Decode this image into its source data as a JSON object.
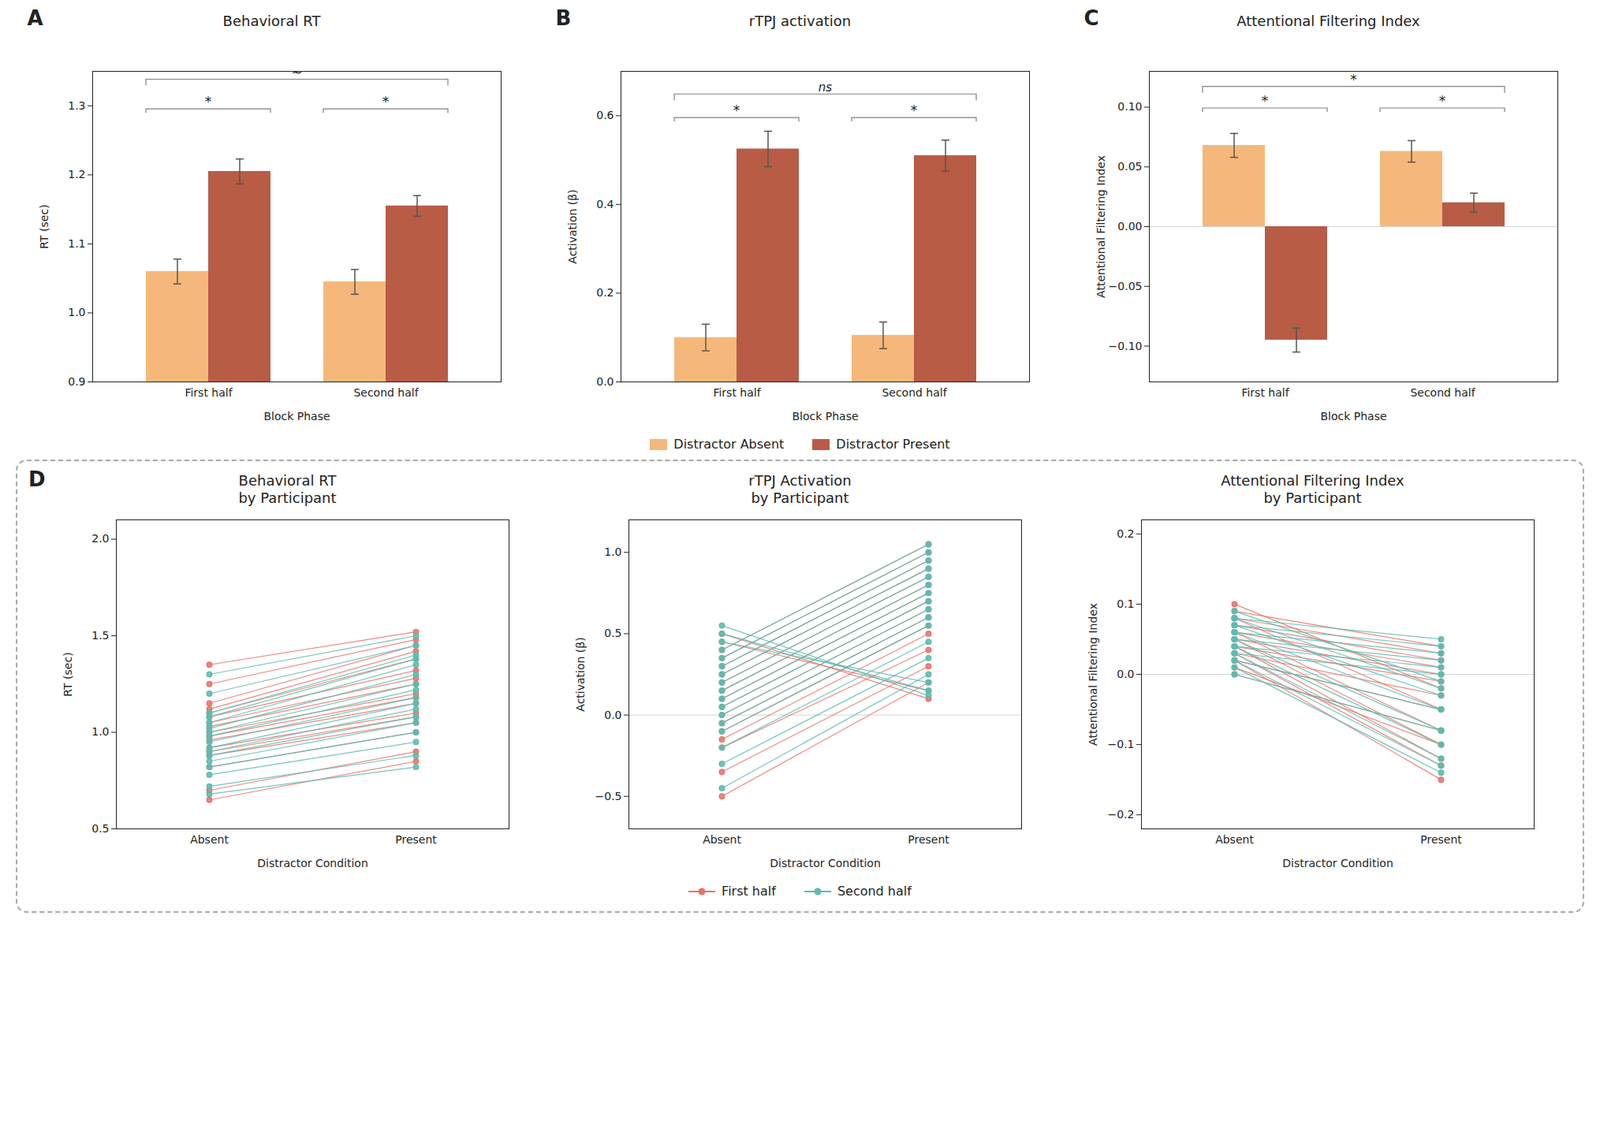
{
  "chart_data": [
    {
      "type": "bar",
      "panel_label": "A",
      "title": "Behavioral RT",
      "xlabel": "Block Phase",
      "ylabel": "RT (sec)",
      "categories": [
        "First half",
        "Second half"
      ],
      "series": [
        {
          "name": "Distractor Absent",
          "color": "#F5B87A",
          "values": [
            1.06,
            1.045
          ],
          "errors": [
            0.018,
            0.018
          ]
        },
        {
          "name": "Distractor Present",
          "color": "#B85C45",
          "values": [
            1.205,
            1.155
          ],
          "errors": [
            0.018,
            0.015
          ]
        }
      ],
      "ylim": [
        0.9,
        1.35
      ],
      "yticks": [
        0.9,
        {
          "value": 1,
          "label": "1.0"
        },
        1.1,
        1.2,
        1.3
      ],
      "annotations": [
        {
          "text": "*",
          "categories": [
            "First half"
          ],
          "y": 1.295
        },
        {
          "text": "*",
          "categories": [
            "Second half"
          ],
          "y": 1.295
        },
        {
          "text": "~",
          "categories": [
            "First half",
            "Second half"
          ],
          "y": 1.338
        }
      ]
    },
    {
      "type": "bar",
      "panel_label": "B",
      "title": "rTPJ activation",
      "xlabel": "Block Phase",
      "ylabel": "Activation (β)",
      "categories": [
        "First half",
        "Second half"
      ],
      "series": [
        {
          "name": "Distractor Absent",
          "color": "#F5B87A",
          "values": [
            0.1,
            0.105
          ],
          "errors": [
            0.03,
            0.03
          ]
        },
        {
          "name": "Distractor Present",
          "color": "#B85C45",
          "values": [
            0.525,
            0.51
          ],
          "errors": [
            0.04,
            0.035
          ]
        }
      ],
      "ylim": [
        0.0,
        0.7
      ],
      "yticks": [
        {
          "value": 0,
          "label": "0.0"
        },
        0.2,
        0.4,
        0.6
      ],
      "legend": "bottom",
      "annotations": [
        {
          "text": "*",
          "categories": [
            "First half"
          ],
          "y": 0.595
        },
        {
          "text": "*",
          "categories": [
            "Second half"
          ],
          "y": 0.595
        },
        {
          "text": "ns",
          "categories": [
            "First half",
            "Second half"
          ],
          "y": 0.648
        }
      ]
    },
    {
      "type": "bar",
      "panel_label": "C",
      "title": "Attentional Filtering Index",
      "xlabel": "Block Phase",
      "ylabel": "Attentional Filtering Index",
      "categories": [
        "First half",
        "Second half"
      ],
      "series": [
        {
          "name": "Distractor Absent",
          "color": "#F5B87A",
          "values": [
            0.068,
            0.063
          ],
          "errors": [
            0.01,
            0.009
          ]
        },
        {
          "name": "Distractor Present",
          "color": "#B85C45",
          "values": [
            -0.095,
            0.02
          ],
          "errors": [
            0.01,
            0.008
          ]
        }
      ],
      "ylim": [
        -0.13,
        0.13
      ],
      "yticks": [
        {
          "value": -0.1,
          "label": "−0.10"
        },
        -0.05,
        {
          "value": 0,
          "label": "0.00"
        },
        0.05,
        {
          "value": 0.1,
          "label": "0.10"
        }
      ],
      "annotations": [
        {
          "text": "*",
          "categories": [
            "First half"
          ],
          "y": 0.099
        },
        {
          "text": "*",
          "categories": [
            "Second half"
          ],
          "y": 0.099
        },
        {
          "text": "*",
          "categories": [
            "First half",
            "Second half"
          ],
          "y": 0.117
        }
      ]
    },
    {
      "type": "line",
      "panel_label": "D",
      "title": "Behavioral RT\nby Participant",
      "xlabel": "Distractor Condition",
      "ylabel": "RT (sec)",
      "categories": [
        "Absent",
        "Present"
      ],
      "series": [
        {
          "name": "First half",
          "color": "#E8746A",
          "marker": "circle",
          "values": [
            [
              1.35,
              1.25,
              1.15,
              1.12,
              1.1,
              1.08,
              1.05,
              1.03,
              1.0,
              0.98,
              0.96,
              0.92,
              0.9,
              0.88,
              0.82,
              0.7,
              0.65
            ],
            [
              1.52,
              1.48,
              1.45,
              1.42,
              1.38,
              1.32,
              1.28,
              1.25,
              1.2,
              1.18,
              1.15,
              1.1,
              1.08,
              1.05,
              1.0,
              0.9,
              0.85
            ]
          ]
        },
        {
          "name": "Second half",
          "color": "#5BBCB0",
          "marker": "circle",
          "values": [
            [
              1.3,
              1.2,
              1.1,
              1.08,
              1.05,
              1.02,
              1.0,
              0.98,
              0.95,
              0.92,
              0.9,
              0.88,
              0.85,
              0.82,
              0.78,
              0.72,
              0.68
            ],
            [
              1.5,
              1.45,
              1.4,
              1.38,
              1.35,
              1.3,
              1.25,
              1.22,
              1.18,
              1.15,
              1.12,
              1.08,
              1.05,
              1.0,
              0.95,
              0.88,
              0.82
            ]
          ]
        }
      ],
      "ylim": [
        0.5,
        2.1
      ],
      "yticks": [
        0.5,
        {
          "value": 1,
          "label": "1.0"
        },
        1.5,
        {
          "value": 2,
          "label": "2.0"
        }
      ]
    },
    {
      "type": "line",
      "title": "rTPJ Activation\nby Participant",
      "xlabel": "Distractor Condition",
      "ylabel": "Activation (β)",
      "categories": [
        "Absent",
        "Present"
      ],
      "series": [
        {
          "name": "First half",
          "color": "#E8746A",
          "marker": "circle",
          "values": [
            [
              -0.5,
              -0.35,
              -0.2,
              -0.15,
              -0.1,
              -0.05,
              0.0,
              0.05,
              0.1,
              0.15,
              0.2,
              0.25,
              0.3,
              0.35,
              0.4,
              0.45,
              0.5
            ],
            [
              0.2,
              0.3,
              0.4,
              0.5,
              0.55,
              0.6,
              0.65,
              0.7,
              0.75,
              0.8,
              0.85,
              0.9,
              0.95,
              1.0,
              1.05,
              0.15,
              0.1
            ]
          ]
        },
        {
          "name": "Second half",
          "color": "#5BBCB0",
          "marker": "circle",
          "values": [
            [
              -0.45,
              -0.3,
              -0.2,
              -0.1,
              -0.05,
              0.0,
              0.05,
              0.1,
              0.15,
              0.2,
              0.25,
              0.3,
              0.35,
              0.4,
              0.45,
              0.5,
              0.55
            ],
            [
              0.25,
              0.35,
              0.45,
              0.55,
              0.6,
              0.65,
              0.7,
              0.75,
              0.8,
              0.85,
              0.9,
              0.95,
              1.0,
              1.05,
              0.2,
              0.15,
              0.12
            ]
          ]
        }
      ],
      "legend": "bottom",
      "ylim": [
        -0.7,
        1.2
      ],
      "yticks": [
        -0.5,
        {
          "value": 0,
          "label": "0.0"
        },
        0.5,
        {
          "value": 1,
          "label": "1.0"
        }
      ]
    },
    {
      "type": "line",
      "title": "Attentional Filtering Index\nby Participant",
      "xlabel": "Distractor Condition",
      "ylabel": "Attentional Filtering Index",
      "categories": [
        "Absent",
        "Present"
      ],
      "series": [
        {
          "name": "First half",
          "color": "#E8746A",
          "marker": "circle",
          "values": [
            [
              0.1,
              0.08,
              0.06,
              0.05,
              0.04,
              0.03,
              0.02,
              0.01,
              0.0,
              0.02,
              0.03,
              0.04,
              0.05,
              0.06,
              0.07,
              0.08,
              0.09
            ],
            [
              -0.02,
              -0.05,
              -0.08,
              -0.1,
              -0.12,
              -0.13,
              -0.15,
              -0.1,
              -0.08,
              -0.05,
              -0.03,
              -0.01,
              0.0,
              0.01,
              0.02,
              0.03,
              0.04
            ]
          ]
        },
        {
          "name": "Second half",
          "color": "#5BBCB0",
          "marker": "circle",
          "values": [
            [
              0.09,
              0.08,
              0.07,
              0.06,
              0.05,
              0.04,
              0.03,
              0.02,
              0.01,
              0.0,
              0.02,
              0.03,
              0.04,
              0.05,
              0.06,
              0.07,
              0.08
            ],
            [
              -0.01,
              -0.02,
              -0.03,
              -0.05,
              -0.08,
              -0.1,
              -0.12,
              -0.13,
              -0.14,
              -0.08,
              -0.05,
              0.0,
              0.01,
              0.02,
              0.03,
              0.04,
              0.05
            ]
          ]
        }
      ],
      "ylim": [
        -0.22,
        0.22
      ],
      "yticks": [
        -0.2,
        -0.1,
        {
          "value": 0,
          "label": "0.0"
        },
        0.1,
        0.2
      ]
    }
  ]
}
